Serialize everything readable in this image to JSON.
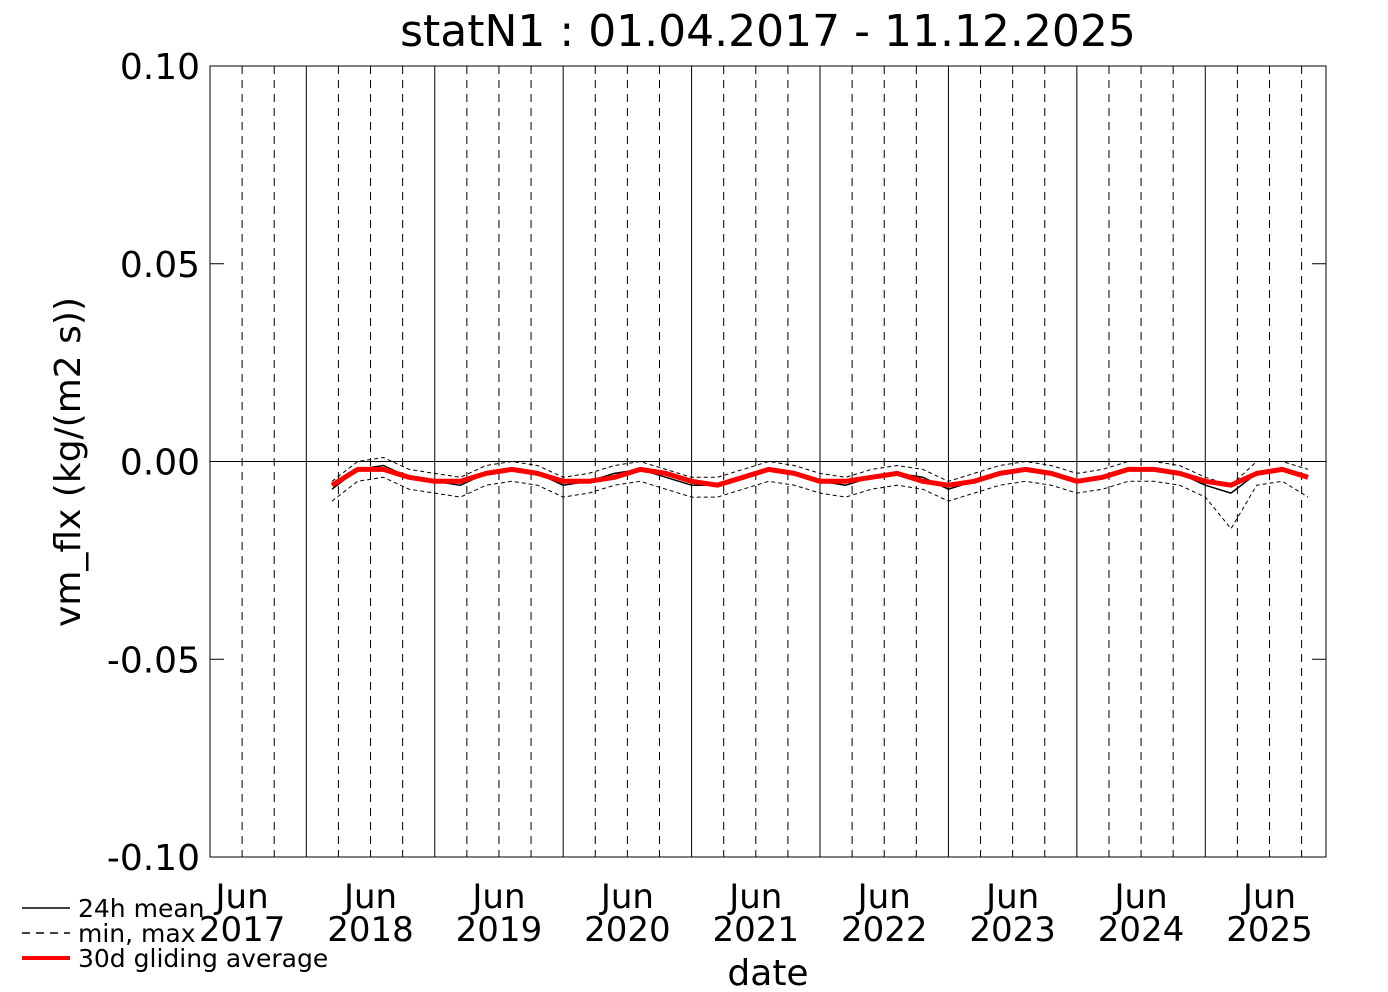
{
  "chart_data": {
    "type": "line",
    "title": "statN1 : 01.04.2017 - 11.12.2025",
    "xlabel": "date",
    "ylabel": "vm_flx (kg/(m2 s))",
    "xlim": [
      2017.25,
      2025.94
    ],
    "ylim": [
      -0.1,
      0.1
    ],
    "xticks": [
      {
        "value": 2017.5,
        "label": "Jun 2017"
      },
      {
        "value": 2018.5,
        "label": "Jun 2018"
      },
      {
        "value": 2019.5,
        "label": "Jun 2019"
      },
      {
        "value": 2020.5,
        "label": "Jun 2020"
      },
      {
        "value": 2021.5,
        "label": "Jun 2021"
      },
      {
        "value": 2022.5,
        "label": "Jun 2022"
      },
      {
        "value": 2023.5,
        "label": "Jun 2023"
      },
      {
        "value": 2024.5,
        "label": "Jun 2024"
      },
      {
        "value": 2025.5,
        "label": "Jun 2025"
      }
    ],
    "yticks": [
      {
        "value": 0.1,
        "label": "0.10"
      },
      {
        "value": 0.05,
        "label": "0.05"
      },
      {
        "value": 0,
        "label": "0.00"
      },
      {
        "value": -0.05,
        "label": "-0.05"
      },
      {
        "value": -0.1,
        "label": "-0.10"
      }
    ],
    "year_grid": [
      2018,
      2019,
      2020,
      2021,
      2022,
      2023,
      2024,
      2025
    ],
    "quarter_grid": [
      2017.75,
      2018.25,
      2018.75,
      2019.25,
      2019.75,
      2020.25,
      2020.75,
      2021.25,
      2021.75,
      2022.25,
      2022.75,
      2023.25,
      2023.75,
      2024.25,
      2024.75,
      2025.25,
      2025.75
    ],
    "x": [
      2018.2,
      2018.4,
      2018.6,
      2018.8,
      2019.0,
      2019.2,
      2019.4,
      2019.6,
      2019.8,
      2020.0,
      2020.2,
      2020.4,
      2020.6,
      2020.8,
      2021.0,
      2021.2,
      2021.4,
      2021.6,
      2021.8,
      2022.0,
      2022.2,
      2022.4,
      2022.6,
      2022.8,
      2023.0,
      2023.2,
      2023.4,
      2023.6,
      2023.8,
      2024.0,
      2024.2,
      2024.4,
      2024.6,
      2024.8,
      2025.0,
      2025.2,
      2025.4,
      2025.6,
      2025.8
    ],
    "series": [
      {
        "name": "24h mean",
        "color": "#000000",
        "style": "solid",
        "width": 1.5,
        "values": [
          -0.007,
          -0.002,
          -0.001,
          -0.004,
          -0.005,
          -0.006,
          -0.003,
          -0.002,
          -0.003,
          -0.006,
          -0.005,
          -0.003,
          -0.002,
          -0.004,
          -0.006,
          -0.006,
          -0.004,
          -0.002,
          -0.003,
          -0.005,
          -0.006,
          -0.004,
          -0.003,
          -0.004,
          -0.007,
          -0.005,
          -0.003,
          -0.002,
          -0.003,
          -0.005,
          -0.004,
          -0.002,
          -0.002,
          -0.003,
          -0.006,
          -0.008,
          -0.003,
          -0.002,
          -0.004
        ]
      },
      {
        "name": "min, max",
        "color": "#000000",
        "style": "dashed",
        "width": 1,
        "values": [
          -0.01,
          -0.005,
          -0.004,
          -0.007,
          -0.008,
          -0.009,
          -0.006,
          -0.005,
          -0.006,
          -0.009,
          -0.008,
          -0.006,
          -0.005,
          -0.007,
          -0.009,
          -0.009,
          -0.007,
          -0.005,
          -0.006,
          -0.008,
          -0.009,
          -0.007,
          -0.006,
          -0.007,
          -0.01,
          -0.008,
          -0.006,
          -0.005,
          -0.006,
          -0.008,
          -0.007,
          -0.005,
          -0.005,
          -0.006,
          -0.009,
          -0.017,
          -0.006,
          -0.005,
          -0.009
        ]
      },
      {
        "color": "#000000",
        "style": "dashed",
        "width": 1,
        "values": [
          -0.005,
          0,
          0.001,
          -0.002,
          -0.003,
          -0.004,
          -0.001,
          0,
          -0.001,
          -0.004,
          -0.003,
          -0.001,
          0,
          -0.002,
          -0.004,
          -0.004,
          -0.002,
          0,
          -0.001,
          -0.003,
          -0.004,
          -0.002,
          -0.001,
          -0.002,
          -0.005,
          -0.003,
          -0.001,
          0,
          -0.001,
          -0.003,
          -0.002,
          0,
          0,
          -0.001,
          -0.004,
          -0.006,
          0,
          0,
          -0.002
        ]
      },
      {
        "name": "30d gliding average",
        "color": "#ff0000",
        "style": "solid",
        "width": 5,
        "values": [
          -0.006,
          -0.002,
          -0.002,
          -0.004,
          -0.005,
          -0.005,
          -0.003,
          -0.002,
          -0.003,
          -0.005,
          -0.005,
          -0.004,
          -0.002,
          -0.003,
          -0.005,
          -0.006,
          -0.004,
          -0.002,
          -0.003,
          -0.005,
          -0.005,
          -0.004,
          -0.003,
          -0.005,
          -0.006,
          -0.005,
          -0.003,
          -0.002,
          -0.003,
          -0.005,
          -0.004,
          -0.002,
          -0.002,
          -0.003,
          -0.005,
          -0.006,
          -0.003,
          -0.002,
          -0.004
        ]
      }
    ]
  }
}
